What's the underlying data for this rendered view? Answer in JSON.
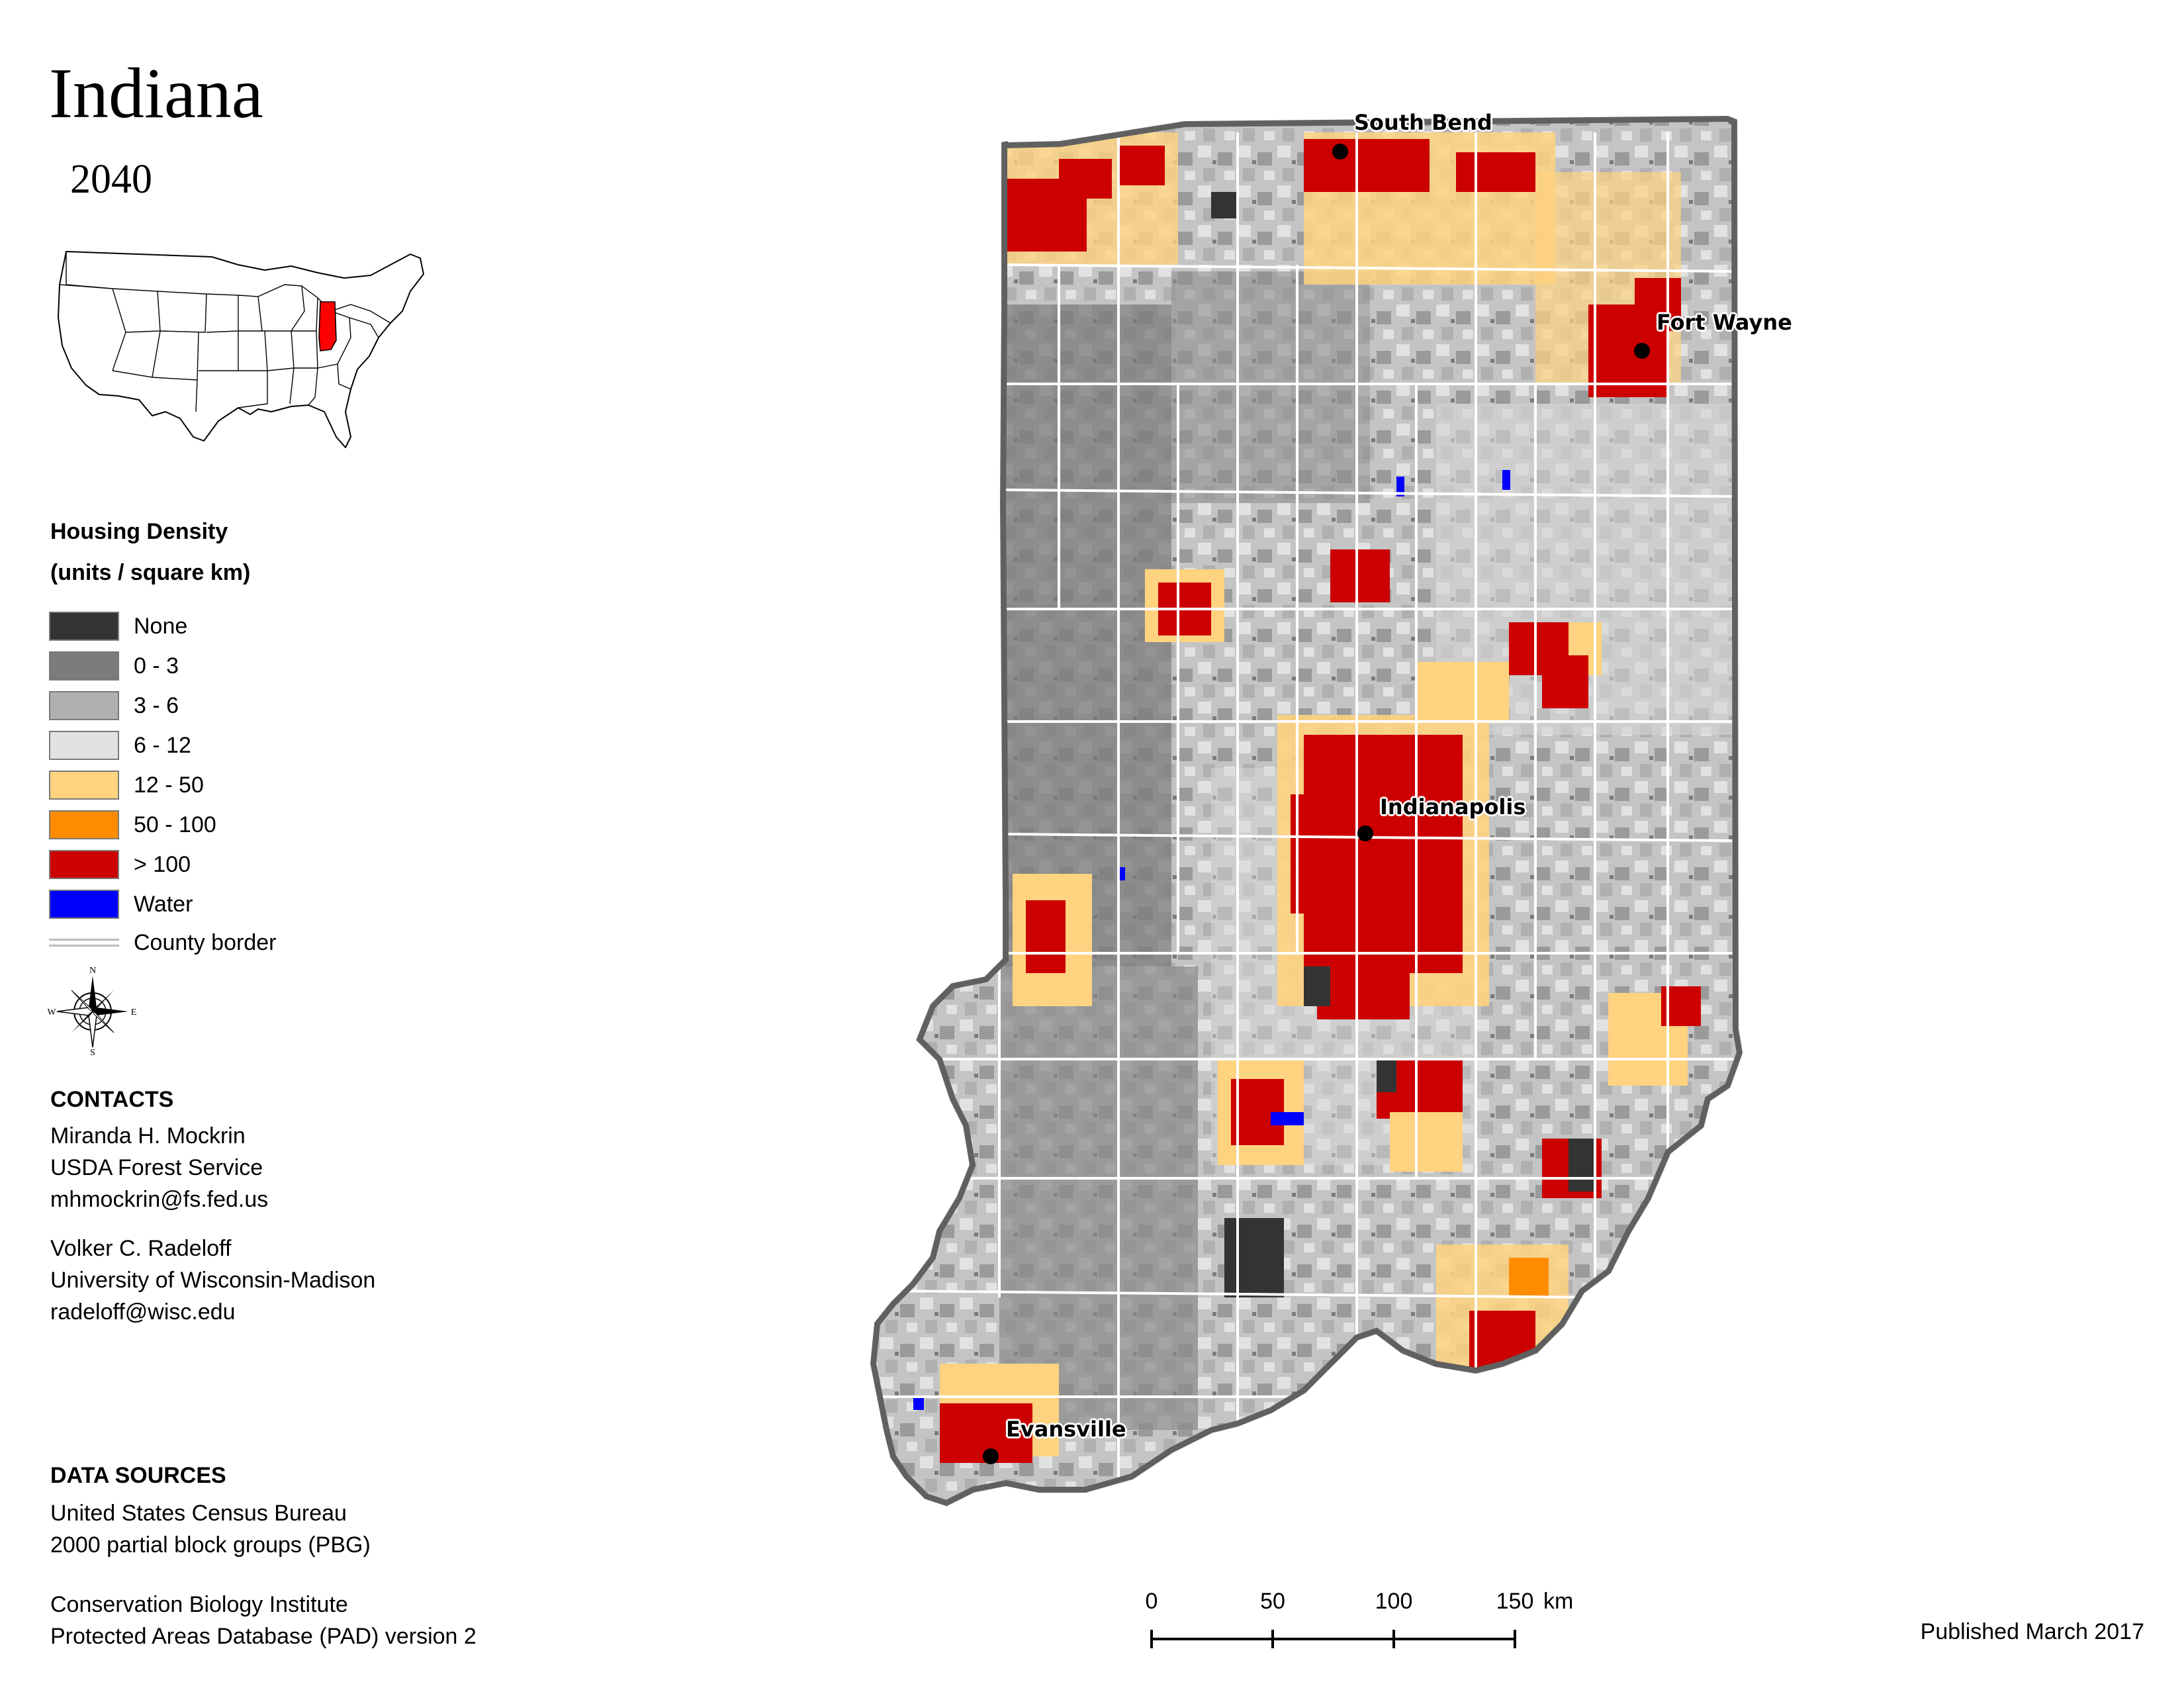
{
  "title": "Indiana",
  "year": "2040",
  "legend": {
    "heading": "Housing Density",
    "units": "(units / square km)",
    "items": [
      {
        "label": "None",
        "color": "#333333"
      },
      {
        "label": "0 - 3",
        "color": "#7b7b7b"
      },
      {
        "label": "3 - 6",
        "color": "#b0b0b0"
      },
      {
        "label": "6 - 12",
        "color": "#e2e2e2"
      },
      {
        "label": "12 - 50",
        "color": "#ffd37f"
      },
      {
        "label": "50 - 100",
        "color": "#ff8c00"
      },
      {
        "label": "> 100",
        "color": "#cc0000"
      },
      {
        "label": "Water",
        "color": "#0000ff"
      }
    ],
    "border_label": "County border"
  },
  "compass": {
    "n": "N",
    "s": "S",
    "e": "E",
    "w": "W"
  },
  "contacts": {
    "heading": "CONTACTS",
    "person1": {
      "name": "Miranda H. Mockrin",
      "org": "USDA Forest Service",
      "email": "mhmockrin@fs.fed.us"
    },
    "person2": {
      "name": "Volker C. Radeloff",
      "org": "University of Wisconsin-Madison",
      "email": "radeloff@wisc.edu"
    }
  },
  "sources": {
    "heading": "DATA SOURCES",
    "line1": "United States Census Bureau",
    "line2": "2000 partial block groups (PBG)",
    "line3": "Conservation Biology Institute",
    "line4": "Protected Areas Database (PAD) version 2"
  },
  "cities": {
    "south_bend": "South Bend",
    "fort_wayne": "Fort Wayne",
    "indianapolis": "Indianapolis",
    "evansville": "Evansville"
  },
  "scale": {
    "t0": "0",
    "t1": "50",
    "t2": "100",
    "t3": "150",
    "unit": "km"
  },
  "published": "Published March 2017",
  "highlight_state_color": "#ff0000"
}
